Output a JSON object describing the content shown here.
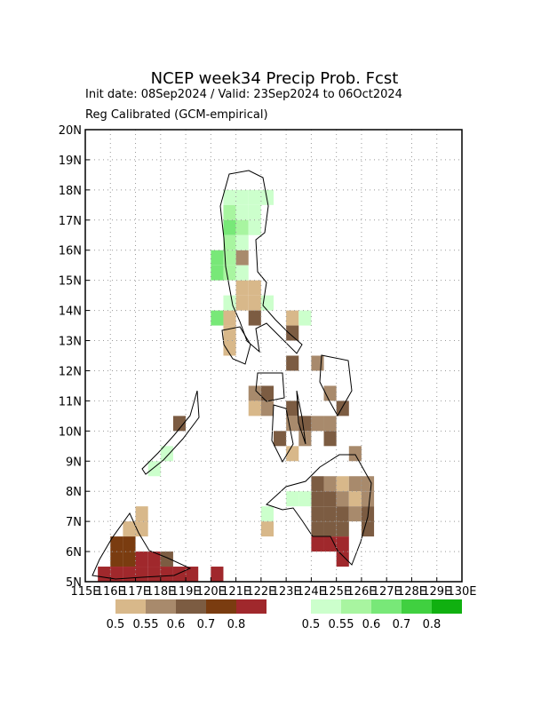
{
  "chart_data": {
    "type": "map",
    "title": "NCEP week34 Precip Prob. Fcst",
    "subtitle": "Init date: 08Sep2024 / Valid: 23Sep2024 to 06Oct2024",
    "note": "Reg Calibrated (GCM-empirical)",
    "xlim": [
      115,
      130
    ],
    "ylim": [
      5,
      20
    ],
    "grid": true,
    "xticks": [
      {
        "value": 115,
        "label": "115E"
      },
      {
        "value": 116,
        "label": "116E"
      },
      {
        "value": 117,
        "label": "117E"
      },
      {
        "value": 118,
        "label": "118E"
      },
      {
        "value": 119,
        "label": "119E"
      },
      {
        "value": 120,
        "label": "120E"
      },
      {
        "value": 121,
        "label": "121E"
      },
      {
        "value": 122,
        "label": "122E"
      },
      {
        "value": 123,
        "label": "123E"
      },
      {
        "value": 124,
        "label": "124E"
      },
      {
        "value": 125,
        "label": "125E"
      },
      {
        "value": 126,
        "label": "126E"
      },
      {
        "value": 127,
        "label": "127E"
      },
      {
        "value": 128,
        "label": "128E"
      },
      {
        "value": 129,
        "label": "129E"
      },
      {
        "value": 130,
        "label": "130E"
      }
    ],
    "yticks": [
      {
        "value": 5,
        "label": "5N"
      },
      {
        "value": 6,
        "label": "6N"
      },
      {
        "value": 7,
        "label": "7N"
      },
      {
        "value": 8,
        "label": "8N"
      },
      {
        "value": 9,
        "label": "9N"
      },
      {
        "value": 10,
        "label": "10N"
      },
      {
        "value": 11,
        "label": "11N"
      },
      {
        "value": 12,
        "label": "12N"
      },
      {
        "value": 13,
        "label": "13N"
      },
      {
        "value": 14,
        "label": "14N"
      },
      {
        "value": 15,
        "label": "15N"
      },
      {
        "value": 16,
        "label": "16N"
      },
      {
        "value": 17,
        "label": "17N"
      },
      {
        "value": 18,
        "label": "18N"
      },
      {
        "value": 19,
        "label": "19N"
      },
      {
        "value": 20,
        "label": "20N"
      }
    ],
    "levels": [
      0.5,
      0.55,
      0.6,
      0.7,
      0.8
    ],
    "below": {
      "colors": [
        "#d8b88a",
        "#a88a6c",
        "#7c5c42",
        "#7a3c10",
        "#a0282c"
      ],
      "cells": [
        [
          121,
          15.5,
          0.55
        ],
        [
          121,
          14.5,
          0.5
        ],
        [
          121.5,
          14.5,
          0.5
        ],
        [
          121,
          14,
          0.5
        ],
        [
          121.5,
          14,
          0.5
        ],
        [
          120.5,
          13.5,
          0.5
        ],
        [
          121.5,
          13.5,
          0.6
        ],
        [
          123,
          13.5,
          0.5
        ],
        [
          120.5,
          13,
          0.5
        ],
        [
          123,
          13,
          0.6
        ],
        [
          120.5,
          12.5,
          0.5
        ],
        [
          123,
          12,
          0.6
        ],
        [
          124,
          12,
          0.55
        ],
        [
          121.5,
          11,
          0.55
        ],
        [
          122,
          11,
          0.6
        ],
        [
          124.5,
          11,
          0.55
        ],
        [
          121.5,
          10.5,
          0.5
        ],
        [
          122,
          10.5,
          0.55
        ],
        [
          123,
          10.5,
          0.6
        ],
        [
          125,
          10.5,
          0.6
        ],
        [
          118.5,
          10,
          0.6
        ],
        [
          123,
          10,
          0.55
        ],
        [
          123.5,
          10,
          0.6
        ],
        [
          124,
          10,
          0.55
        ],
        [
          124.5,
          10,
          0.55
        ],
        [
          122.5,
          9.5,
          0.6
        ],
        [
          123.5,
          9.5,
          0.55
        ],
        [
          124.5,
          9.5,
          0.6
        ],
        [
          123,
          9,
          0.5
        ],
        [
          125.5,
          9,
          0.55
        ],
        [
          124,
          8,
          0.6
        ],
        [
          124.5,
          8,
          0.55
        ],
        [
          125,
          8,
          0.5
        ],
        [
          125.5,
          8,
          0.55
        ],
        [
          126,
          8,
          0.55
        ],
        [
          124,
          7.5,
          0.6
        ],
        [
          124.5,
          7.5,
          0.6
        ],
        [
          125,
          7.5,
          0.55
        ],
        [
          125.5,
          7.5,
          0.5
        ],
        [
          126,
          7.5,
          0.55
        ],
        [
          122,
          6.5,
          0.5
        ],
        [
          124,
          7,
          0.6
        ],
        [
          124.5,
          7,
          0.6
        ],
        [
          125,
          7,
          0.6
        ],
        [
          125.5,
          7,
          0.55
        ],
        [
          126,
          7,
          0.6
        ],
        [
          124,
          6.5,
          0.6
        ],
        [
          124.5,
          6.5,
          0.6
        ],
        [
          125,
          6.5,
          0.6
        ],
        [
          126,
          6.5,
          0.6
        ],
        [
          124,
          6,
          0.8
        ],
        [
          124.5,
          6,
          0.8
        ],
        [
          125,
          6,
          0.8
        ],
        [
          125,
          5.5,
          0.8
        ],
        [
          117,
          7,
          0.5
        ],
        [
          116.5,
          6.5,
          0.5
        ],
        [
          117,
          6.5,
          0.5
        ],
        [
          116,
          6,
          0.7
        ],
        [
          116.5,
          6,
          0.7
        ],
        [
          116,
          5.5,
          0.7
        ],
        [
          116.5,
          5.5,
          0.7
        ],
        [
          117,
          5.5,
          0.8
        ],
        [
          117.5,
          5.5,
          0.8
        ],
        [
          118,
          5.5,
          0.6
        ],
        [
          115.5,
          5,
          0.8
        ],
        [
          116,
          5,
          0.8
        ],
        [
          116.5,
          5,
          0.8
        ],
        [
          117,
          5,
          0.8
        ],
        [
          117.5,
          5,
          0.8
        ],
        [
          118,
          5,
          0.8
        ],
        [
          118.5,
          5,
          0.8
        ],
        [
          119,
          5,
          0.8
        ],
        [
          120,
          5,
          0.8
        ]
      ]
    },
    "above": {
      "colors": [
        "#ccffcc",
        "#a8f5a0",
        "#78e878",
        "#40d040",
        "#10b010"
      ],
      "cells": [
        [
          120.5,
          17.5,
          0.5
        ],
        [
          121,
          17.5,
          0.5
        ],
        [
          121.5,
          17.5,
          0.5
        ],
        [
          122,
          17.5,
          0.5
        ],
        [
          120.5,
          17,
          0.55
        ],
        [
          121,
          17,
          0.5
        ],
        [
          121.5,
          17,
          0.5
        ],
        [
          120.5,
          16.5,
          0.6
        ],
        [
          121,
          16.5,
          0.55
        ],
        [
          121.5,
          16.5,
          0.5
        ],
        [
          120.5,
          16,
          0.55
        ],
        [
          121,
          16,
          0.5
        ],
        [
          120,
          15.5,
          0.6
        ],
        [
          120.5,
          15.5,
          0.55
        ],
        [
          120,
          15,
          0.6
        ],
        [
          120.5,
          15,
          0.55
        ],
        [
          121,
          15,
          0.5
        ],
        [
          120.5,
          14,
          0.5
        ],
        [
          122,
          14,
          0.5
        ],
        [
          120,
          13.5,
          0.6
        ],
        [
          123.5,
          13.5,
          0.5
        ],
        [
          117.5,
          8.5,
          0.5
        ],
        [
          118,
          9,
          0.5
        ],
        [
          123,
          7.5,
          0.5
        ],
        [
          123.5,
          7.5,
          0.5
        ],
        [
          122,
          7,
          0.5
        ]
      ]
    }
  }
}
